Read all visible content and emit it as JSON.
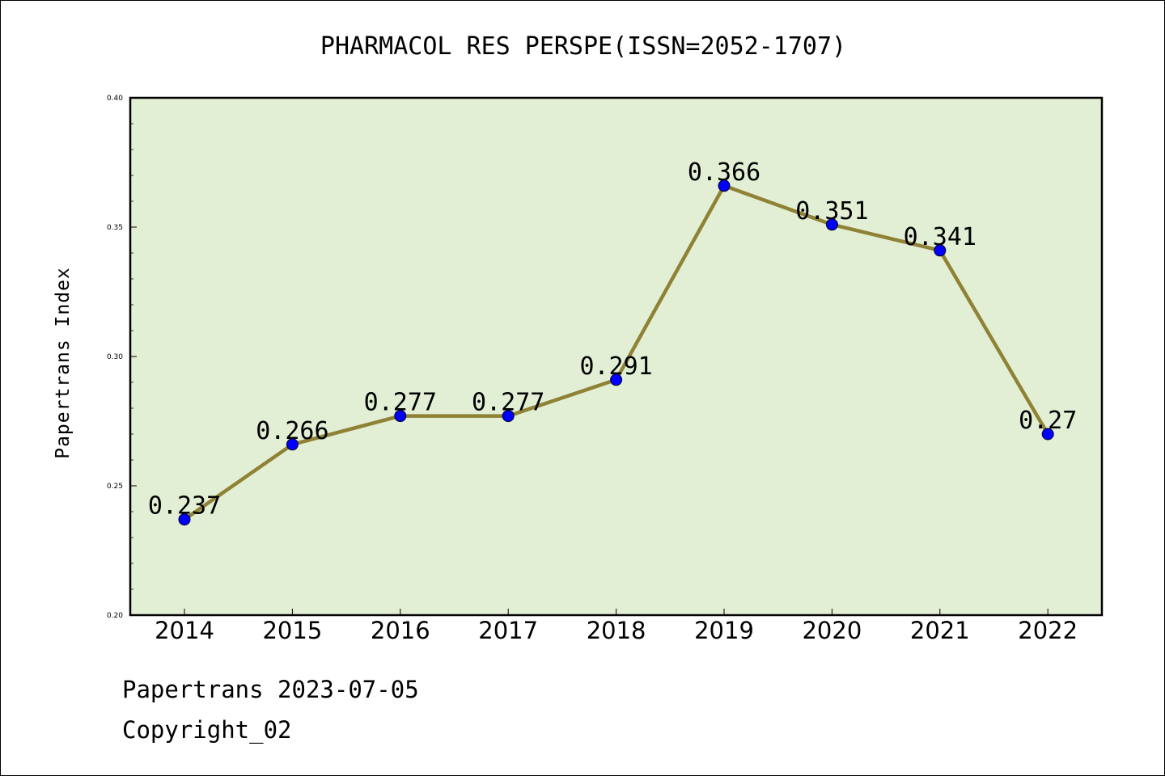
{
  "chart_data": {
    "type": "line",
    "title": "PHARMACOL RES PERSPE(ISSN=2052-1707)",
    "xlabel": "",
    "ylabel": "Papertrans Index",
    "categories": [
      "2014",
      "2015",
      "2016",
      "2017",
      "2018",
      "2019",
      "2020",
      "2021",
      "2022"
    ],
    "series": [
      {
        "values": [
          0.237,
          0.266,
          0.277,
          0.277,
          0.291,
          0.366,
          0.351,
          0.341,
          0.27
        ],
        "labels": [
          "0.237",
          "0.266",
          "0.277",
          "0.277",
          "0.291",
          "0.366",
          "0.351",
          "0.341",
          "0.27"
        ]
      }
    ],
    "ylim": [
      0.2,
      0.4
    ],
    "yticks": [
      "0.20",
      "0.25",
      "0.30",
      "0.35",
      "0.40"
    ],
    "grid": false,
    "legend": "none",
    "colors": {
      "plot_background": "#e2efd5",
      "line": "#8f8235",
      "marker": "#0000ff",
      "axes": "#000000"
    }
  },
  "footer": {
    "line1": "Papertrans 2023-07-05",
    "line2": "Copyright_02"
  }
}
